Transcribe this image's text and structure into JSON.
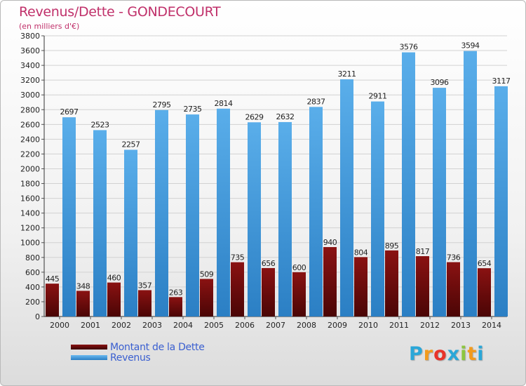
{
  "colors": {
    "debt": "#7a0d0d",
    "revenue": "#4ca3e5",
    "title": "#c0306a",
    "legend_text": "#3a5fd0"
  },
  "legend": {
    "debt_label": "Montant de la Dette",
    "revenue_label": "Revenus"
  },
  "logo": {
    "letters": [
      "P",
      "r",
      "o",
      "x",
      "i",
      "t",
      "i"
    ],
    "colors": [
      "#2aa7d8",
      "#f29b1d",
      "#e8342a",
      "#2aa7d8",
      "#8cc63f",
      "#f29b1d",
      "#2aa7d8"
    ]
  },
  "chart_data": {
    "type": "bar",
    "title": "Revenus/Dette - GONDECOURT",
    "subtitle": "(en milliers d'€)",
    "xlabel": "",
    "ylabel": "",
    "ylim": [
      0,
      3800
    ],
    "ytick_step": 200,
    "grid": true,
    "legend_position": "bottom-left",
    "categories": [
      "2000",
      "2001",
      "2002",
      "2003",
      "2004",
      "2005",
      "2006",
      "2007",
      "2008",
      "2009",
      "2010",
      "2011",
      "2012",
      "2013",
      "2014"
    ],
    "series": [
      {
        "name": "Montant de la Dette",
        "values": [
          445,
          348,
          460,
          357,
          263,
          509,
          735,
          656,
          600,
          940,
          804,
          895,
          817,
          736,
          654
        ]
      },
      {
        "name": "Revenus",
        "values": [
          2697,
          2523,
          2257,
          2795,
          2735,
          2814,
          2629,
          2632,
          2837,
          3211,
          2911,
          3576,
          3096,
          3594,
          3117
        ]
      }
    ]
  }
}
